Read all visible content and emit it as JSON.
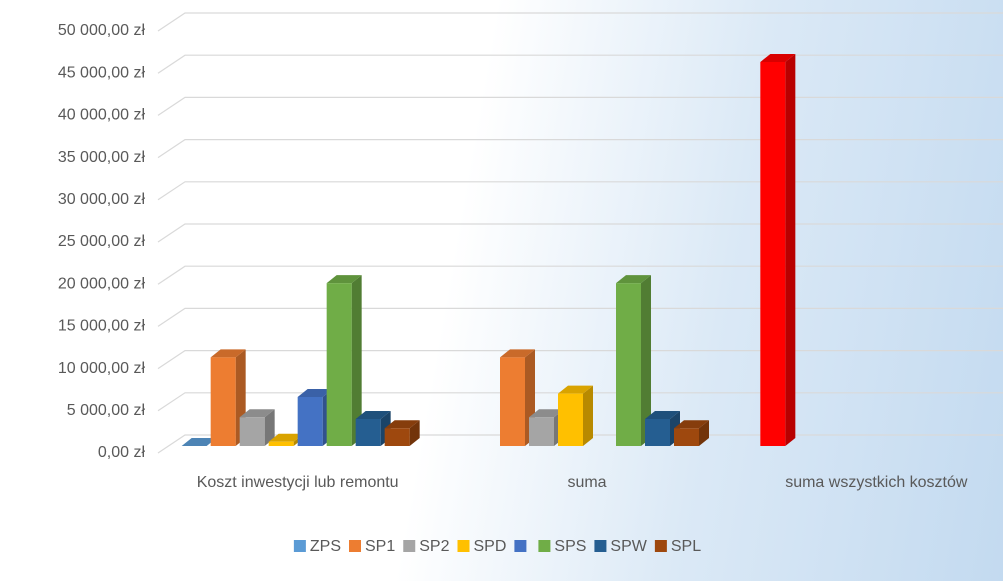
{
  "chart_data": {
    "type": "bar3d",
    "categories": [
      "Koszt inwestycji lub remontu",
      "suma",
      "suma wszystkich kosztów"
    ],
    "series": [
      {
        "name": "ZPS",
        "color": "#5b9bd5",
        "values": [
          0,
          null,
          45500
        ],
        "point_colors": [
          "#5b9bd5",
          "#5b9bd5",
          "#ff0000"
        ]
      },
      {
        "name": "SP1",
        "color": "#ed7d31",
        "values": [
          10500,
          10500,
          null
        ]
      },
      {
        "name": "SP2",
        "color": "#a5a5a5",
        "values": [
          3400,
          3400,
          null
        ]
      },
      {
        "name": "SPD",
        "color": "#ffc000",
        "values": [
          500,
          6200,
          null
        ]
      },
      {
        "name": null,
        "color": "#4472c4",
        "values": [
          5800,
          null,
          null
        ]
      },
      {
        "name": "SPS",
        "color": "#70ad47",
        "values": [
          19300,
          19300,
          null
        ]
      },
      {
        "name": "SPW",
        "color": "#255e91",
        "values": [
          3200,
          3200,
          null
        ]
      },
      {
        "name": "SPL",
        "color": "#9e480e",
        "values": [
          2100,
          2100,
          null
        ]
      }
    ],
    "ylim": [
      0,
      50000
    ],
    "yticks": [
      {
        "value": 0,
        "label": "0,00 zł"
      },
      {
        "value": 5000,
        "label": "5 000,00 zł"
      },
      {
        "value": 10000,
        "label": "10 000,00 zł"
      },
      {
        "value": 15000,
        "label": "15 000,00 zł"
      },
      {
        "value": 20000,
        "label": "20 000,00 zł"
      },
      {
        "value": 25000,
        "label": "25 000,00 zł"
      },
      {
        "value": 30000,
        "label": "30 000,00 zł"
      },
      {
        "value": 35000,
        "label": "35 000,00 zł"
      },
      {
        "value": 40000,
        "label": "40 000,00 zł"
      },
      {
        "value": 45000,
        "label": "45 000,00 zł"
      },
      {
        "value": 50000,
        "label": "50 000,00 zł"
      }
    ],
    "grid": true,
    "legend": "bottom"
  }
}
